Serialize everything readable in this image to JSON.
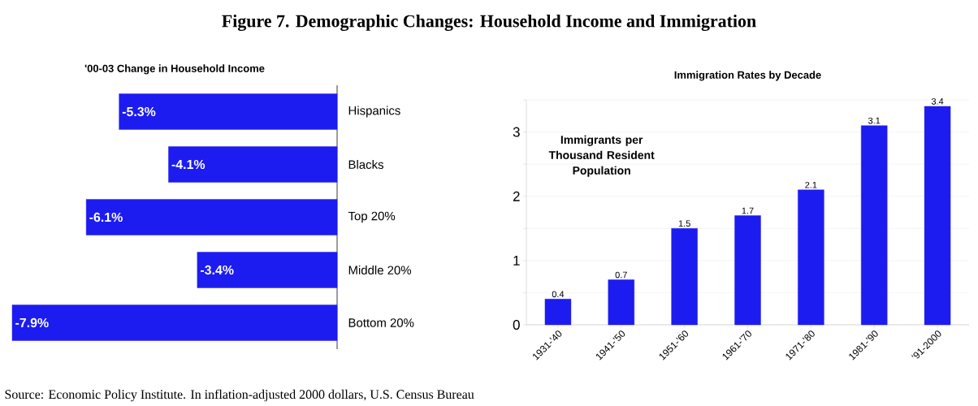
{
  "chart_data": [
    {
      "type": "bar",
      "orientation": "horizontal",
      "title": "'00-03 Change in Household Income",
      "categories": [
        "Hispanics",
        "Blacks",
        "Top 20%",
        "Middle 20%",
        "Bottom 20%"
      ],
      "values": [
        -5.3,
        -4.1,
        -6.1,
        -3.4,
        -7.9
      ],
      "value_labels": [
        "-5.3%",
        "-4.1%",
        "-6.1%",
        "-3.4%",
        "-7.9%"
      ],
      "color": "#1c1cf0",
      "annotations": [
        "Figure 7.  Demographic Changes: Household Income and Immigration",
        "Source: Economic Policy Institute.  In inflation-adjusted 2000 dollars, U.S. Census Bureau"
      ]
    },
    {
      "type": "bar",
      "title": "Immigration Rates by Decade",
      "categories": [
        "1931-'40",
        "1941-'50",
        "1951-'60",
        "1961-'70",
        "1971-'80",
        "1981-'90",
        "'91-2000"
      ],
      "values": [
        0.4,
        0.7,
        1.5,
        1.7,
        2.1,
        3.1,
        3.4
      ],
      "color": "#1c1cf0",
      "data_labels": true,
      "grid": "y",
      "ylim": [
        0,
        3.5
      ],
      "yticks": [
        0,
        {
          "value": 0.5,
          "label": null
        },
        1,
        {
          "value": 1.5,
          "label": null
        },
        2,
        {
          "value": 2.5,
          "label": null
        },
        3,
        {
          "value": 3.5,
          "label": null
        }
      ],
      "annotations": [
        "Immigrants per Thousand Resident Population"
      ]
    }
  ]
}
